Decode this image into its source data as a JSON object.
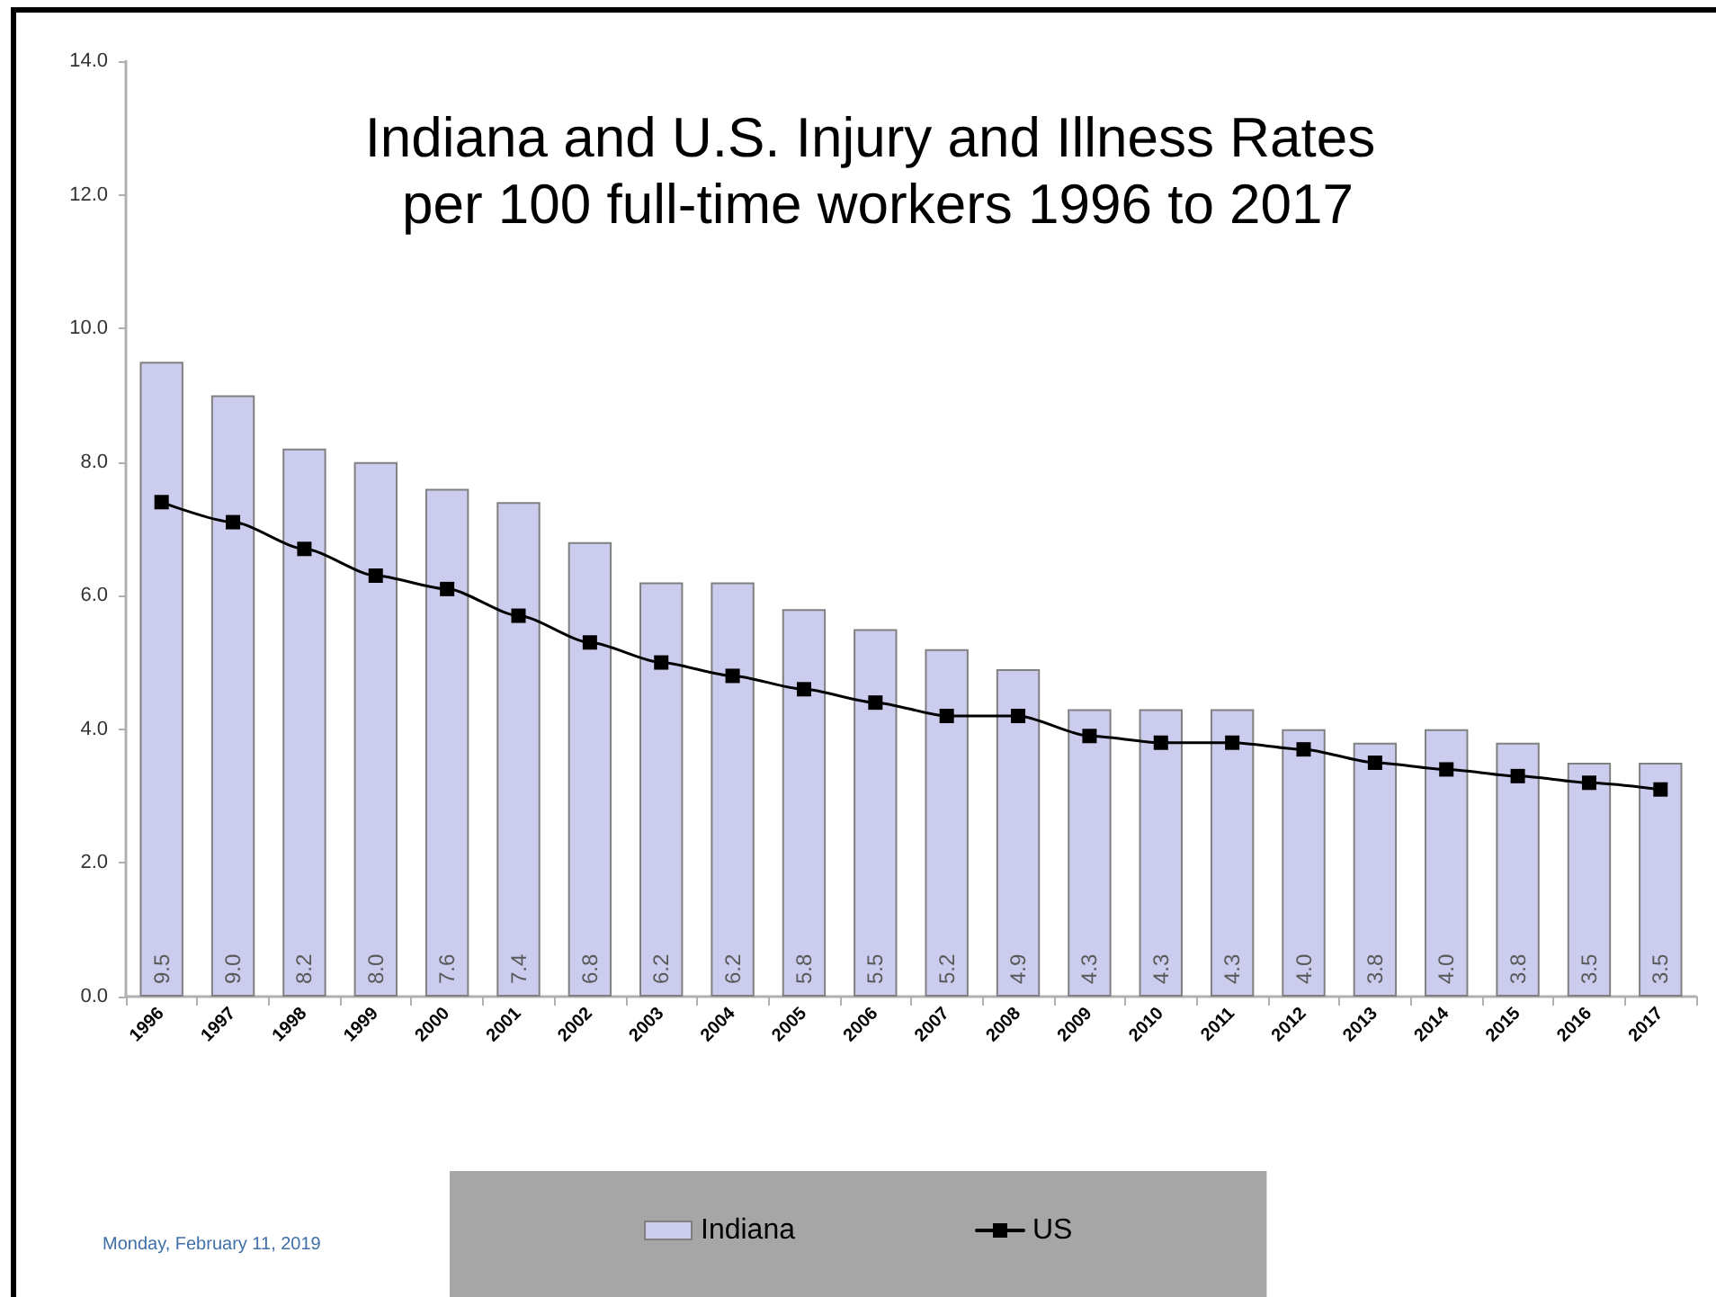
{
  "chart_data": {
    "type": "bar",
    "title": "Indiana and U.S. Injury and Illness Rates per 100 full-time workers 1996 to 2017",
    "categories": [
      "1996",
      "1997",
      "1998",
      "1999",
      "2000",
      "2001",
      "2002",
      "2003",
      "2004",
      "2005",
      "2006",
      "2007",
      "2008",
      "2009",
      "2010",
      "2011",
      "2012",
      "2013",
      "2014",
      "2015",
      "2016",
      "2017"
    ],
    "series": [
      {
        "name": "Indiana",
        "color": "#ccccee",
        "values": [
          9.5,
          9.0,
          8.2,
          8.0,
          7.6,
          7.4,
          6.8,
          6.2,
          6.2,
          5.8,
          5.5,
          5.2,
          4.9,
          4.3,
          4.3,
          4.3,
          4.0,
          3.8,
          4.0,
          3.8,
          3.5,
          3.5
        ],
        "value_labels": [
          "9.5",
          "9.0",
          "8.2",
          "8.0",
          "7.6",
          "7.4",
          "6.8",
          "6.2",
          "6.2",
          "5.8",
          "5.5",
          "5.2",
          "4.9",
          "4.3",
          "4.3",
          "4.3",
          "4.0",
          "3.8",
          "4.0",
          "3.8",
          "3.5",
          "3.5"
        ]
      },
      {
        "name": "US",
        "type": "line",
        "color": "#000000",
        "values": [
          7.4,
          7.1,
          6.7,
          6.3,
          6.1,
          5.7,
          5.3,
          5.0,
          4.8,
          4.6,
          4.4,
          4.2,
          4.2,
          3.9,
          3.8,
          3.8,
          3.7,
          3.5,
          3.4,
          3.3,
          3.2,
          3.1
        ]
      }
    ],
    "ylim": [
      0,
      14
    ],
    "yticks": [
      {
        "value": 0,
        "label": "0.0"
      },
      {
        "value": 2,
        "label": "2.0"
      },
      {
        "value": 4,
        "label": "4.0"
      },
      {
        "value": 6,
        "label": "6.0"
      },
      {
        "value": 8,
        "label": "8.0"
      },
      {
        "value": 10,
        "label": "10.0"
      },
      {
        "value": 12,
        "label": "12.0"
      },
      {
        "value": 14,
        "label": "14.0"
      }
    ],
    "marker": "square",
    "line_style": "solid",
    "legend": "bottom",
    "annotations": [
      "Monday, February 11, 2019"
    ]
  }
}
